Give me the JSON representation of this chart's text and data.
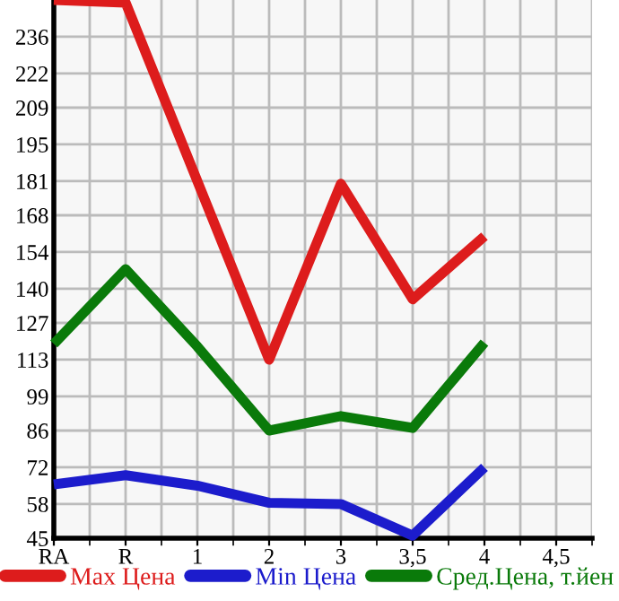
{
  "chart_data": {
    "type": "line",
    "categories": [
      "RA",
      "R",
      "1",
      "2",
      "3",
      "3,5",
      "4",
      "4,5"
    ],
    "series": [
      {
        "name": "Max Цена",
        "color": "#dd1c1c",
        "values": [
          250,
          249,
          181,
          113,
          180,
          136,
          160,
          null
        ]
      },
      {
        "name": "Min Цена",
        "color": "#1c1ccc",
        "values": [
          65.5,
          69,
          65,
          58.5,
          58,
          46,
          72,
          null
        ]
      },
      {
        "name": "Сред.Цена, т.йен",
        "color": "#0a7a0a",
        "values": [
          119,
          147.5,
          118,
          86,
          91.5,
          87,
          119.5,
          null
        ]
      }
    ],
    "ylim": [
      45,
      250
    ],
    "yticks": [
      45,
      58,
      72,
      86,
      99,
      113,
      127,
      140,
      154,
      168,
      181,
      195,
      209,
      222,
      236
    ],
    "grid": true,
    "legend": "bottom",
    "marker": "none",
    "line_style": "solid"
  }
}
